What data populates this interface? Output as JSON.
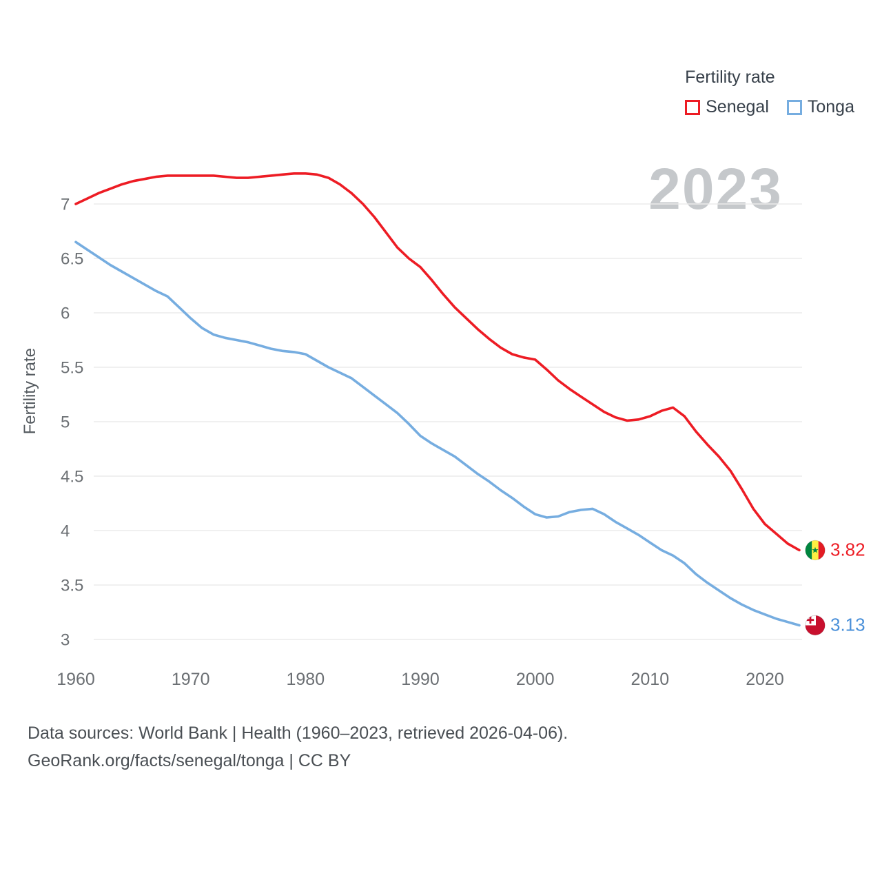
{
  "legend": {
    "title": "Fertility rate",
    "items": [
      {
        "label": "Senegal",
        "color": "#ed1c24"
      },
      {
        "label": "Tonga",
        "color": "#76ade0"
      }
    ]
  },
  "year_watermark": "2023",
  "end_labels": {
    "senegal": "3.82",
    "tonga": "3.13"
  },
  "footer": {
    "line1": "Data sources: World Bank | Health (1960–2023, retrieved 2026-04-06).",
    "line2": "GeoRank.org/facts/senegal/tonga | CC BY"
  },
  "chart_data": {
    "type": "line",
    "title": "Fertility rate",
    "xlabel": "",
    "ylabel": "Fertility rate",
    "xlim": [
      1960,
      2023
    ],
    "ylim": [
      3,
      7
    ],
    "grid": true,
    "legend_position": "top-right",
    "xticks": [
      1960,
      1970,
      1980,
      1990,
      2000,
      2010,
      2020
    ],
    "yticks": [
      3,
      3.5,
      4,
      4.5,
      5,
      5.5,
      6,
      6.5,
      7
    ],
    "x": [
      1960,
      1961,
      1962,
      1963,
      1964,
      1965,
      1966,
      1967,
      1968,
      1969,
      1970,
      1971,
      1972,
      1973,
      1974,
      1975,
      1976,
      1977,
      1978,
      1979,
      1980,
      1981,
      1982,
      1983,
      1984,
      1985,
      1986,
      1987,
      1988,
      1989,
      1990,
      1991,
      1992,
      1993,
      1994,
      1995,
      1996,
      1997,
      1998,
      1999,
      2000,
      2001,
      2002,
      2003,
      2004,
      2005,
      2006,
      2007,
      2008,
      2009,
      2010,
      2011,
      2012,
      2013,
      2014,
      2015,
      2016,
      2017,
      2018,
      2019,
      2020,
      2021,
      2022,
      2023
    ],
    "series": [
      {
        "name": "Senegal",
        "color": "#ed1c24",
        "values": [
          7.0,
          7.05,
          7.1,
          7.14,
          7.18,
          7.21,
          7.23,
          7.25,
          7.26,
          7.26,
          7.26,
          7.26,
          7.26,
          7.25,
          7.24,
          7.24,
          7.25,
          7.26,
          7.27,
          7.28,
          7.28,
          7.27,
          7.24,
          7.18,
          7.1,
          7.0,
          6.88,
          6.74,
          6.6,
          6.5,
          6.42,
          6.3,
          6.17,
          6.05,
          5.95,
          5.85,
          5.76,
          5.68,
          5.62,
          5.59,
          5.57,
          5.48,
          5.38,
          5.3,
          5.23,
          5.16,
          5.09,
          5.04,
          5.01,
          5.02,
          5.05,
          5.1,
          5.13,
          5.05,
          4.91,
          4.79,
          4.68,
          4.55,
          4.38,
          4.2,
          4.06,
          3.97,
          3.88,
          3.82
        ]
      },
      {
        "name": "Tonga",
        "color": "#76ade0",
        "values": [
          6.65,
          6.58,
          6.51,
          6.44,
          6.38,
          6.32,
          6.26,
          6.2,
          6.15,
          6.05,
          5.95,
          5.86,
          5.8,
          5.77,
          5.75,
          5.73,
          5.7,
          5.67,
          5.65,
          5.64,
          5.62,
          5.56,
          5.5,
          5.45,
          5.4,
          5.32,
          5.24,
          5.16,
          5.08,
          4.98,
          4.87,
          4.8,
          4.74,
          4.68,
          4.6,
          4.52,
          4.45,
          4.37,
          4.3,
          4.22,
          4.15,
          4.12,
          4.13,
          4.17,
          4.19,
          4.2,
          4.15,
          4.08,
          4.02,
          3.96,
          3.89,
          3.82,
          3.77,
          3.7,
          3.6,
          3.52,
          3.45,
          3.38,
          3.32,
          3.27,
          3.23,
          3.19,
          3.16,
          3.13
        ]
      }
    ]
  }
}
